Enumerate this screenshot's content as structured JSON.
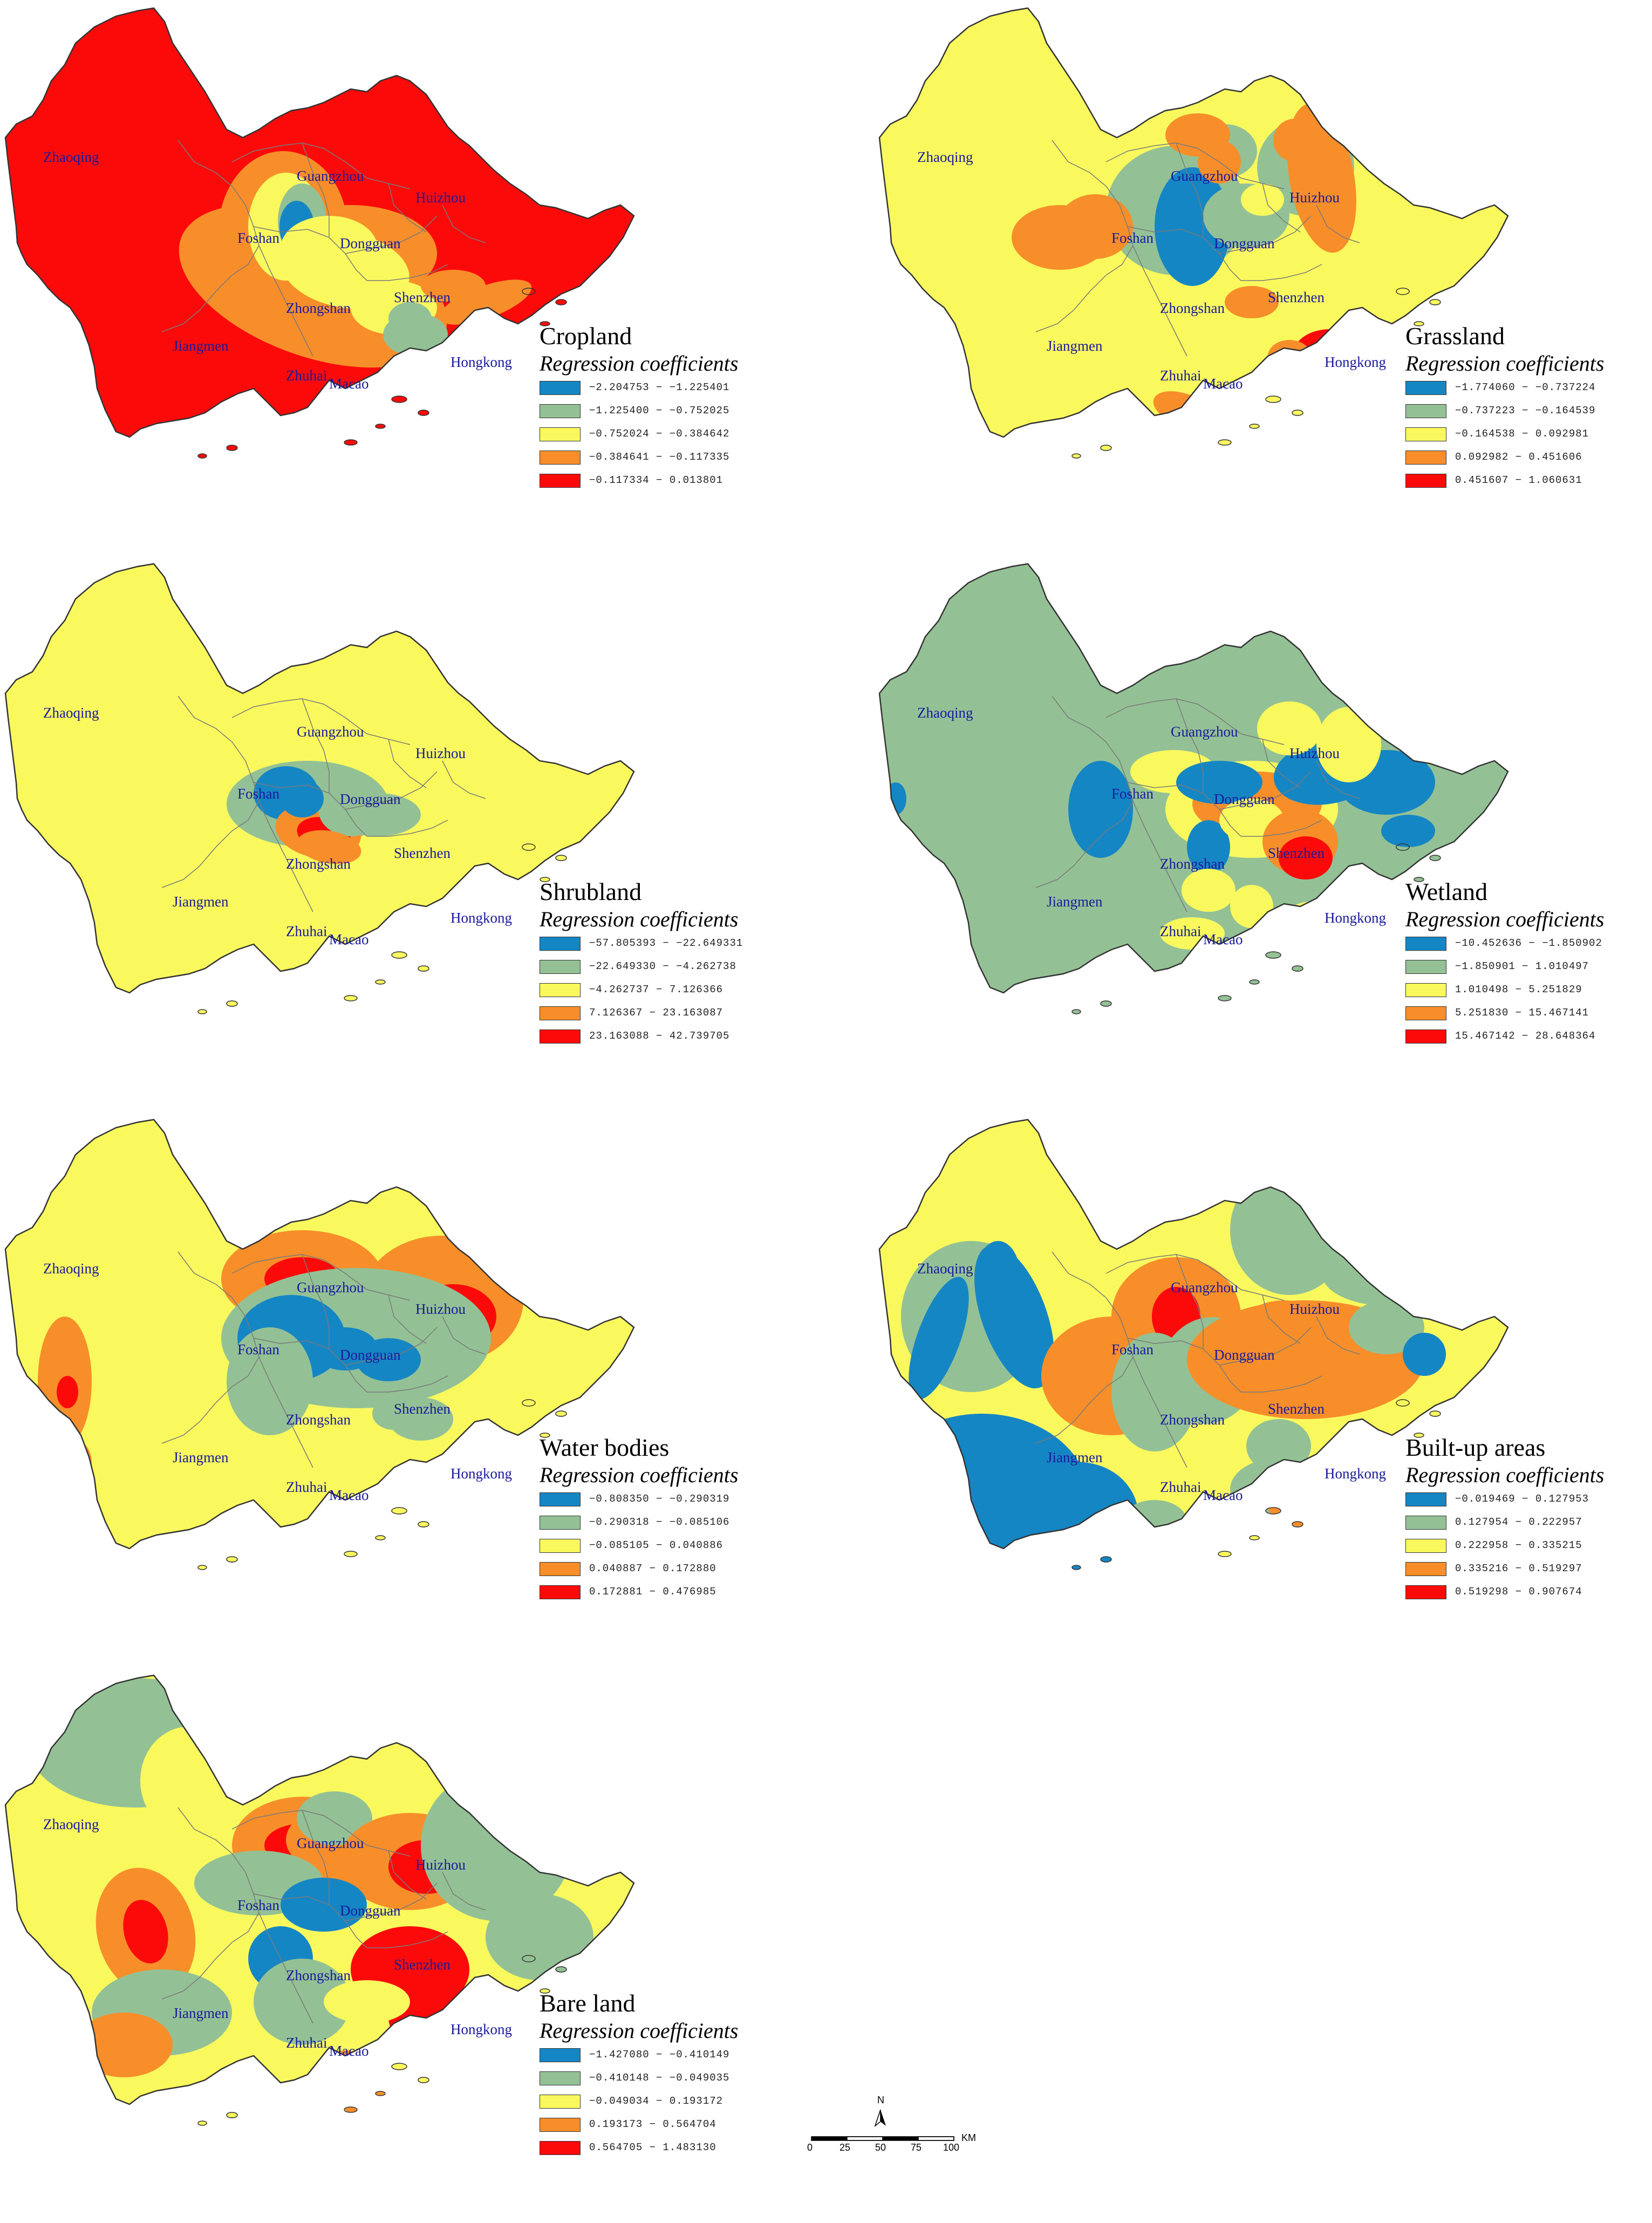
{
  "colors": {
    "class1": "#1586c4",
    "class2": "#93c195",
    "class3": "#f9f95e",
    "class4": "#f78e2a",
    "class5": "#fc0a0a"
  },
  "cities": [
    "Zhaoqing",
    "Guangzhou",
    "Huizhou",
    "Foshan",
    "Dongguan",
    "Zhongshan",
    "Shenzhen",
    "Jiangmen",
    "Zhuhai",
    "Macao",
    "Hongkong"
  ],
  "subtitle": "Regression coefficients",
  "panels": [
    {
      "title": "Cropland",
      "legend": [
        "−2.204753 − −1.225401",
        "−1.225400 − −0.752025",
        "−0.752024 − −0.384642",
        "−0.384641 − −0.117335",
        "−0.117334 − 0.013801"
      ]
    },
    {
      "title": "Grassland",
      "legend": [
        "−1.774060 − −0.737224",
        "−0.737223 − −0.164539",
        "−0.164538 − 0.092981",
        "0.092982 − 0.451606",
        "0.451607 − 1.060631"
      ]
    },
    {
      "title": "Shrubland",
      "legend": [
        "−57.805393 − −22.649331",
        "−22.649330 − −4.262738",
        "−4.262737 − 7.126366",
        "7.126367 − 23.163087",
        "23.163088 − 42.739705"
      ]
    },
    {
      "title": "Wetland",
      "legend": [
        "−10.452636 − −1.850902",
        "−1.850901 − 1.010497",
        "1.010498 − 5.251829",
        "5.251830 − 15.467141",
        "15.467142 − 28.648364"
      ]
    },
    {
      "title": "Water bodies",
      "legend": [
        "−0.808350 − −0.290319",
        "−0.290318 − −0.085106",
        "−0.085105 − 0.040886",
        "0.040887 − 0.172880",
        "0.172881 − 0.476985"
      ]
    },
    {
      "title": "Built-up areas",
      "legend": [
        "−0.019469 − 0.127953",
        "0.127954 − 0.222957",
        "0.222958 − 0.335215",
        "0.335216 − 0.519297",
        "0.519298 − 0.907674"
      ]
    },
    {
      "title": "Bare land",
      "legend": [
        "−1.427080 − −0.410149",
        "−0.410148 − −0.049035",
        "−0.049034 − 0.193172",
        "0.193173 − 0.564704",
        "0.564705 − 1.483130"
      ]
    }
  ],
  "scale": {
    "ticks": [
      "0",
      "25",
      "50",
      "75",
      "100"
    ],
    "unit": "KM",
    "north": "N"
  }
}
